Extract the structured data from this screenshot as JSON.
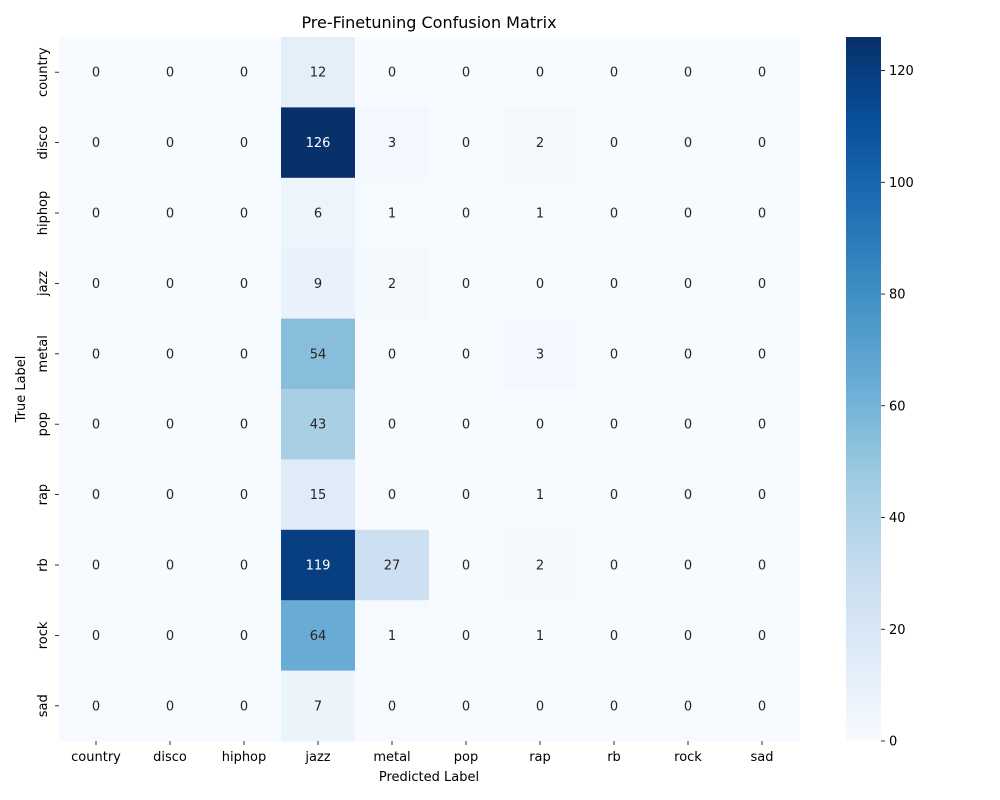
{
  "chart_data": {
    "type": "heatmap",
    "title": "Pre-Finetuning Confusion Matrix",
    "xlabel": "Predicted Label",
    "ylabel": "True Label",
    "x_categories": [
      "country",
      "disco",
      "hiphop",
      "jazz",
      "metal",
      "pop",
      "rap",
      "rb",
      "rock",
      "sad"
    ],
    "y_categories": [
      "country",
      "disco",
      "hiphop",
      "jazz",
      "metal",
      "pop",
      "rap",
      "rb",
      "rock",
      "sad"
    ],
    "values": [
      [
        0,
        0,
        0,
        12,
        0,
        0,
        0,
        0,
        0,
        0
      ],
      [
        0,
        0,
        0,
        126,
        3,
        0,
        2,
        0,
        0,
        0
      ],
      [
        0,
        0,
        0,
        6,
        1,
        0,
        1,
        0,
        0,
        0
      ],
      [
        0,
        0,
        0,
        9,
        2,
        0,
        0,
        0,
        0,
        0
      ],
      [
        0,
        0,
        0,
        54,
        0,
        0,
        3,
        0,
        0,
        0
      ],
      [
        0,
        0,
        0,
        43,
        0,
        0,
        0,
        0,
        0,
        0
      ],
      [
        0,
        0,
        0,
        15,
        0,
        0,
        1,
        0,
        0,
        0
      ],
      [
        0,
        0,
        0,
        119,
        27,
        0,
        2,
        0,
        0,
        0
      ],
      [
        0,
        0,
        0,
        64,
        1,
        0,
        1,
        0,
        0,
        0
      ],
      [
        0,
        0,
        0,
        7,
        0,
        0,
        0,
        0,
        0,
        0
      ]
    ],
    "colorbar": {
      "colormap": "Blues",
      "min": 0,
      "max": 126,
      "ticks": [
        0,
        20,
        40,
        60,
        80,
        100,
        120
      ]
    },
    "grid": false
  }
}
